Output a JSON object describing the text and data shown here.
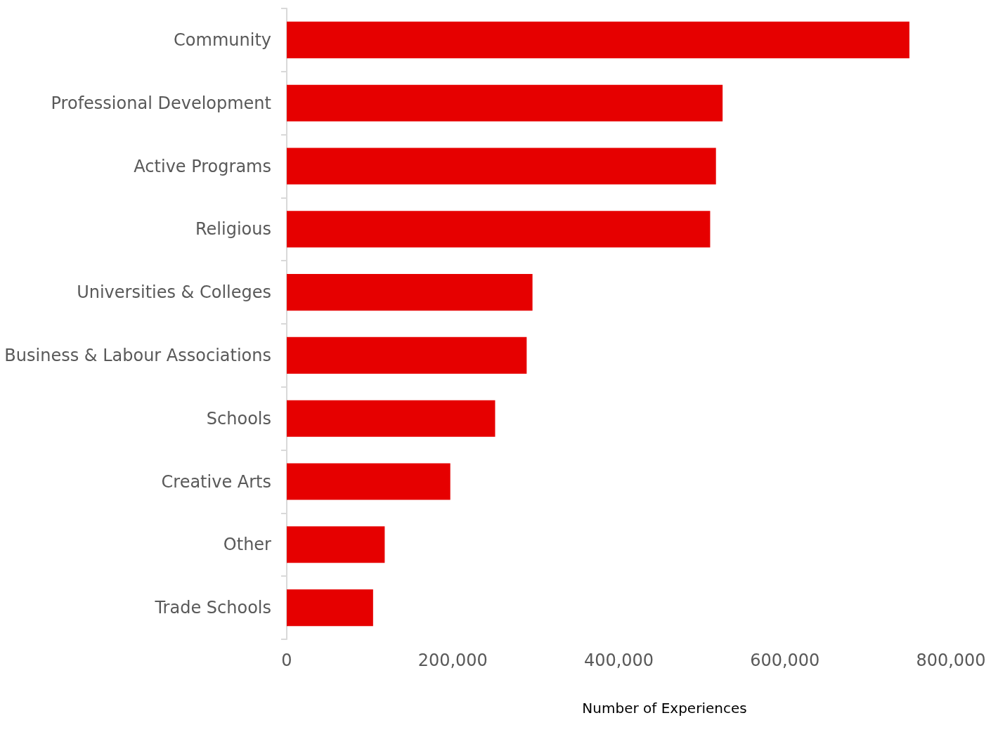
{
  "chart_data": {
    "type": "bar",
    "orientation": "horizontal",
    "xlabel": "Number of Experiences",
    "categories": [
      "Community",
      "Professional Development",
      "Active Programs",
      "Religious",
      "Universities & Colleges",
      "Business & Labour Associations",
      "Schools",
      "Creative Arts",
      "Other",
      "Trade Schools"
    ],
    "values": [
      750000,
      525000,
      517000,
      510000,
      296000,
      289000,
      251000,
      197000,
      118000,
      104000
    ],
    "color": "#e60000",
    "xlim": [
      0,
      800000
    ],
    "xticks": [
      0,
      {
        "value": 200000,
        "label": "200,000"
      },
      {
        "value": 400000,
        "label": "400,000"
      },
      {
        "value": 600000,
        "label": "600,000"
      },
      {
        "value": 800000,
        "label": "800,000"
      }
    ],
    "grid": false
  }
}
